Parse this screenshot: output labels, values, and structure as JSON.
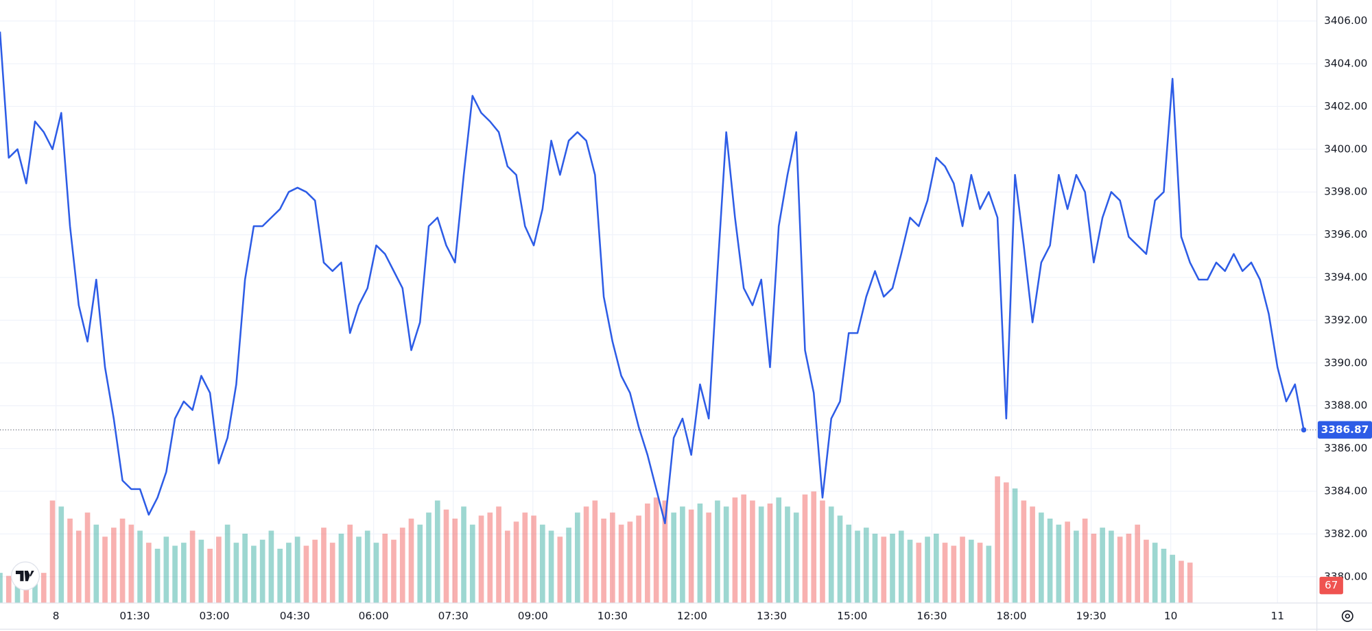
{
  "chart_data": {
    "type": "line",
    "xlim": [
      0,
      150.5
    ],
    "xticks": [
      {
        "value": 6.4,
        "label": "8"
      },
      {
        "value": 15.4,
        "label": "01:30"
      },
      {
        "value": 24.5,
        "label": "03:00"
      },
      {
        "value": 33.7,
        "label": "04:30"
      },
      {
        "value": 42.7,
        "label": "06:00"
      },
      {
        "value": 51.8,
        "label": "07:30"
      },
      {
        "value": 60.9,
        "label": "09:00"
      },
      {
        "value": 70.0,
        "label": "10:30"
      },
      {
        "value": 79.1,
        "label": "12:00"
      },
      {
        "value": 88.2,
        "label": "13:30"
      },
      {
        "value": 97.4,
        "label": "15:00"
      },
      {
        "value": 106.5,
        "label": "16:30"
      },
      {
        "value": 115.6,
        "label": "18:00"
      },
      {
        "value": 124.7,
        "label": "19:30"
      },
      {
        "value": 133.8,
        "label": "10"
      },
      {
        "value": 146.0,
        "label": "11"
      }
    ],
    "ylim": [
      3378.77,
      3406.98
    ],
    "yticks": [
      {
        "value": 3380,
        "label": "3380.00"
      },
      {
        "value": 3382,
        "label": "3382.00"
      },
      {
        "value": 3384,
        "label": "3384.00"
      },
      {
        "value": 3386,
        "label": "3386.00"
      },
      {
        "value": 3388,
        "label": "3388.00"
      },
      {
        "value": 3390,
        "label": "3390.00"
      },
      {
        "value": 3392,
        "label": "3392.00"
      },
      {
        "value": 3394,
        "label": "3394.00"
      },
      {
        "value": 3396,
        "label": "3396.00"
      },
      {
        "value": 3398,
        "label": "3398.00"
      },
      {
        "value": 3400,
        "label": "3400.00"
      },
      {
        "value": 3402,
        "label": "3402.00"
      },
      {
        "value": 3404,
        "label": "3404.00"
      },
      {
        "value": 3406,
        "label": "3406.00"
      }
    ],
    "grid": true,
    "series": [
      {
        "color": "#2d5ce6",
        "values": [
          3405.5,
          3399.6,
          3400,
          3398.4,
          3401.3,
          3400.8,
          3400,
          3401.7,
          3396.4,
          3392.7,
          3391,
          3393.9,
          3389.8,
          3387.4,
          3384.5,
          3384.1,
          3384.1,
          3382.9,
          3383.7,
          3384.9,
          3387.4,
          3388.2,
          3387.8,
          3389.4,
          3388.6,
          3385.3,
          3386.5,
          3389,
          3393.9,
          3396.4,
          3396.4,
          3396.8,
          3397.2,
          3398,
          3398.2,
          3398,
          3397.6,
          3394.7,
          3394.3,
          3394.7,
          3391.4,
          3392.7,
          3393.5,
          3395.5,
          3395.1,
          3394.3,
          3393.5,
          3390.6,
          3391.9,
          3396.4,
          3396.8,
          3395.5,
          3394.7,
          3398.8,
          3402.5,
          3401.7,
          3401.3,
          3400.8,
          3399.2,
          3398.8,
          3396.4,
          3395.5,
          3397.2,
          3400.4,
          3398.8,
          3400.4,
          3400.8,
          3400.4,
          3398.8,
          3393.1,
          3391,
          3389.4,
          3388.6,
          3387,
          3385.7,
          3384.1,
          3382.5,
          3386.5,
          3387.4,
          3385.7,
          3389,
          3387.4,
          3394.3,
          3400.8,
          3396.8,
          3393.5,
          3392.7,
          3393.9,
          3389.8,
          3396.4,
          3398.8,
          3400.8,
          3390.6,
          3388.6,
          3383.7,
          3387.4,
          3388.2,
          3391.4,
          3391.4,
          3393.1,
          3394.3,
          3393.1,
          3393.5,
          3395.1,
          3396.8,
          3396.4,
          3397.6,
          3399.6,
          3399.2,
          3398.4,
          3396.4,
          3398.8,
          3397.2,
          3398,
          3396.8,
          3387.4,
          3398.8,
          3395.5,
          3391.9,
          3394.7,
          3395.5,
          3398.8,
          3397.2,
          3398.8,
          3398,
          3394.7,
          3396.8,
          3398,
          3397.6,
          3395.9,
          3395.5,
          3395.1,
          3397.6,
          3398,
          3403.3,
          3395.9,
          3394.7,
          3393.9,
          3393.9,
          3394.7,
          3394.3,
          3395.1,
          3394.3,
          3394.7,
          3393.9,
          3392.3,
          3389.8,
          3388.2,
          3389,
          3386.87
        ]
      }
    ],
    "volume": {
      "axis": "y2",
      "up_color": "#26a69a",
      "down_color": "#ef5350",
      "values": [
        50,
        45,
        60,
        40,
        55,
        50,
        170,
        160,
        140,
        120,
        150,
        130,
        110,
        125,
        140,
        130,
        120,
        100,
        90,
        110,
        95,
        100,
        120,
        105,
        90,
        110,
        130,
        100,
        115,
        95,
        105,
        120,
        90,
        100,
        110,
        95,
        105,
        125,
        100,
        115,
        130,
        110,
        120,
        100,
        115,
        105,
        125,
        140,
        130,
        150,
        170,
        155,
        140,
        160,
        130,
        145,
        150,
        160,
        120,
        135,
        150,
        145,
        130,
        120,
        110,
        125,
        150,
        160,
        170,
        140,
        150,
        130,
        135,
        145,
        165,
        175,
        170,
        150,
        160,
        155,
        165,
        150,
        170,
        160,
        175,
        180,
        170,
        160,
        165,
        175,
        160,
        150,
        180,
        185,
        170,
        160,
        145,
        130,
        120,
        125,
        115,
        110,
        115,
        120,
        105,
        100,
        110,
        115,
        100,
        95,
        110,
        105,
        100,
        95,
        210,
        200,
        190,
        170,
        160,
        150,
        140,
        130,
        135,
        120,
        140,
        115,
        125,
        120,
        110,
        115,
        130,
        105,
        100,
        90,
        80,
        70,
        67,
        null,
        null,
        null,
        null,
        null,
        null,
        null,
        null,
        null,
        null,
        null,
        null,
        null
      ]
    },
    "y2lim": [
      0,
      1000
    ]
  }
}
